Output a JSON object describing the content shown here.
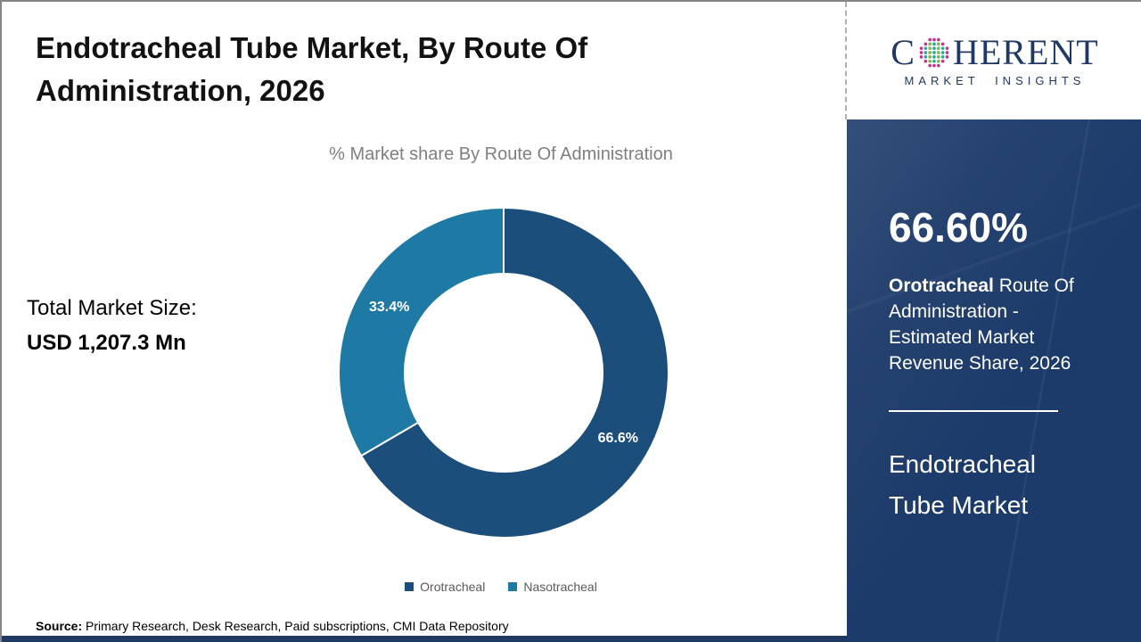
{
  "page": {
    "title": "Endotracheal Tube Market, By Route Of Administration, 2026",
    "source_label": "Source:",
    "source_text": " Primary Research, Desk Research, Paid subscriptions, CMI Data Repository"
  },
  "chart_data": {
    "type": "pie",
    "subtype": "donut",
    "title": "% Market share By Route Of Administration",
    "categories": [
      "Orotracheal",
      "Nasotracheal"
    ],
    "values": [
      66.6,
      33.4
    ],
    "colors": [
      "#1c4e7c",
      "#1e7aa5"
    ],
    "start_angle": "top",
    "direction": "clockwise",
    "inner_radius_ratio": 0.6,
    "legend_position": "bottom",
    "legend_text_color": "#595959",
    "label_color": "#ffffff"
  },
  "stats": {
    "total_label": "Total Market Size:",
    "total_value": "USD 1,207.3 Mn"
  },
  "sidebar": {
    "stat_value": "66.60%",
    "stat_bold": "Orotracheal",
    "stat_rest": " Route Of Administration - Estimated Market Revenue Share, 2026",
    "market_line1": "Endotracheal",
    "market_line2": "Tube Market",
    "bg_color": "#1d3b6a"
  },
  "logo": {
    "prefix": "C",
    "suffix": "HERENT",
    "subtitle": "MARKET INSIGHTS",
    "navy": "#1f3864",
    "dot_outer": "#c0328c",
    "dot_teal": "#2aa8a0",
    "dot_green": "#7ab648"
  }
}
